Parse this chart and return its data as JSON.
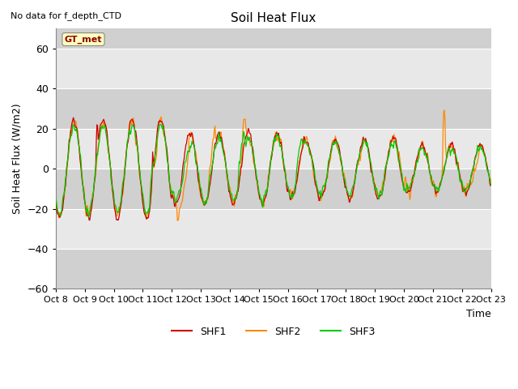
{
  "title": "Soil Heat Flux",
  "subtitle": "No data for f_depth_CTD",
  "ylabel": "Soil Heat Flux (W/m2)",
  "xlabel": "Time",
  "annotation": "GT_met",
  "ylim": [
    -60,
    70
  ],
  "yticks": [
    -60,
    -40,
    -20,
    0,
    20,
    40,
    60
  ],
  "x_tick_labels": [
    "Oct 8",
    "Oct 9",
    "Oct 10",
    "Oct 11",
    "Oct 12",
    "Oct 13",
    "Oct 14",
    "Oct 15",
    "Oct 16",
    "Oct 17",
    "Oct 18",
    "Oct 19",
    "Oct 20",
    "Oct 21",
    "Oct 22",
    "Oct 23"
  ],
  "shf1_color": "#CC0000",
  "shf2_color": "#FF8800",
  "shf3_color": "#00CC00",
  "plot_bg_dark": "#D8D8D8",
  "plot_bg_light": "#EBEBEB",
  "grid_color": "#FFFFFF",
  "n_days": 15,
  "random_seed": 12345
}
